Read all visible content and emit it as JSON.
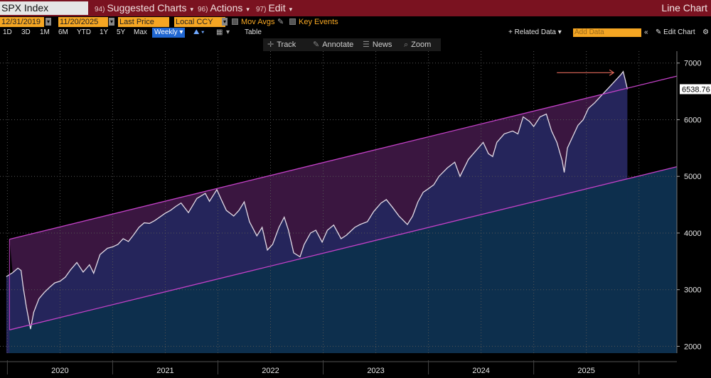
{
  "header": {
    "ticker": "SPX Index",
    "menus": [
      {
        "num": "94)",
        "label": "Suggested Charts"
      },
      {
        "num": "96)",
        "label": "Actions"
      },
      {
        "num": "97)",
        "label": "Edit"
      }
    ],
    "chart_type": "Line Chart"
  },
  "controls": {
    "start_date": "12/31/2019",
    "end_date": "11/20/2025",
    "price_field": "Last Price",
    "currency": "Local CCY",
    "mov_avgs": "Mov Avgs",
    "key_events": "Key Events",
    "ranges": [
      "1D",
      "3D",
      "1M",
      "6M",
      "YTD",
      "1Y",
      "5Y",
      "Max"
    ],
    "frequency": "Weekly",
    "table_label": "Table",
    "related_data": "+ Related Data",
    "add_data_placeholder": "Add Data",
    "edit_chart": "Edit Chart"
  },
  "toolbar": {
    "track": "Track",
    "annotate": "Annotate",
    "news": "News",
    "zoom": "Zoom"
  },
  "chart_data": {
    "type": "line",
    "series": [
      {
        "values": [
          [
            2019.99,
            3231
          ],
          [
            2020.05,
            3300
          ],
          [
            2020.1,
            3380
          ],
          [
            2020.13,
            3340
          ],
          [
            2020.15,
            3050
          ],
          [
            2020.18,
            2700
          ],
          [
            2020.22,
            2304
          ],
          [
            2020.25,
            2600
          ],
          [
            2020.3,
            2840
          ],
          [
            2020.35,
            2950
          ],
          [
            2020.4,
            3040
          ],
          [
            2020.45,
            3120
          ],
          [
            2020.5,
            3150
          ],
          [
            2020.55,
            3220
          ],
          [
            2020.6,
            3350
          ],
          [
            2020.66,
            3480
          ],
          [
            2020.72,
            3310
          ],
          [
            2020.78,
            3440
          ],
          [
            2020.82,
            3290
          ],
          [
            2020.88,
            3620
          ],
          [
            2020.95,
            3730
          ],
          [
            2021.0,
            3756
          ],
          [
            2021.05,
            3800
          ],
          [
            2021.1,
            3900
          ],
          [
            2021.15,
            3850
          ],
          [
            2021.2,
            3970
          ],
          [
            2021.25,
            4100
          ],
          [
            2021.3,
            4180
          ],
          [
            2021.35,
            4170
          ],
          [
            2021.4,
            4220
          ],
          [
            2021.5,
            4350
          ],
          [
            2021.55,
            4400
          ],
          [
            2021.6,
            4470
          ],
          [
            2021.65,
            4530
          ],
          [
            2021.72,
            4360
          ],
          [
            2021.8,
            4610
          ],
          [
            2021.88,
            4700
          ],
          [
            2021.92,
            4560
          ],
          [
            2021.99,
            4766
          ],
          [
            2022.03,
            4600
          ],
          [
            2022.08,
            4400
          ],
          [
            2022.15,
            4300
          ],
          [
            2022.2,
            4400
          ],
          [
            2022.25,
            4550
          ],
          [
            2022.3,
            4200
          ],
          [
            2022.37,
            3950
          ],
          [
            2022.42,
            4100
          ],
          [
            2022.47,
            3700
          ],
          [
            2022.52,
            3800
          ],
          [
            2022.58,
            4100
          ],
          [
            2022.63,
            4280
          ],
          [
            2022.67,
            4050
          ],
          [
            2022.72,
            3650
          ],
          [
            2022.78,
            3580
          ],
          [
            2022.82,
            3800
          ],
          [
            2022.88,
            4000
          ],
          [
            2022.93,
            4050
          ],
          [
            2022.99,
            3840
          ],
          [
            2023.04,
            4050
          ],
          [
            2023.1,
            4140
          ],
          [
            2023.17,
            3900
          ],
          [
            2023.22,
            3960
          ],
          [
            2023.3,
            4100
          ],
          [
            2023.35,
            4150
          ],
          [
            2023.42,
            4200
          ],
          [
            2023.48,
            4380
          ],
          [
            2023.55,
            4530
          ],
          [
            2023.6,
            4590
          ],
          [
            2023.66,
            4450
          ],
          [
            2023.72,
            4300
          ],
          [
            2023.8,
            4150
          ],
          [
            2023.85,
            4300
          ],
          [
            2023.9,
            4550
          ],
          [
            2023.95,
            4720
          ],
          [
            2023.99,
            4770
          ],
          [
            2024.05,
            4850
          ],
          [
            2024.1,
            5000
          ],
          [
            2024.18,
            5150
          ],
          [
            2024.25,
            5250
          ],
          [
            2024.3,
            5000
          ],
          [
            2024.38,
            5300
          ],
          [
            2024.45,
            5450
          ],
          [
            2024.52,
            5600
          ],
          [
            2024.57,
            5400
          ],
          [
            2024.61,
            5350
          ],
          [
            2024.65,
            5600
          ],
          [
            2024.72,
            5750
          ],
          [
            2024.8,
            5800
          ],
          [
            2024.85,
            5750
          ],
          [
            2024.9,
            6050
          ],
          [
            2024.96,
            5970
          ],
          [
            2025.0,
            5880
          ],
          [
            2025.06,
            6050
          ],
          [
            2025.12,
            6100
          ],
          [
            2025.17,
            5800
          ],
          [
            2025.22,
            5600
          ],
          [
            2025.27,
            5280
          ],
          [
            2025.29,
            5070
          ],
          [
            2025.32,
            5500
          ],
          [
            2025.37,
            5700
          ],
          [
            2025.42,
            5900
          ],
          [
            2025.47,
            6000
          ],
          [
            2025.52,
            6200
          ],
          [
            2025.58,
            6300
          ],
          [
            2025.63,
            6400
          ],
          [
            2025.68,
            6500
          ],
          [
            2025.73,
            6600
          ],
          [
            2025.78,
            6700
          ],
          [
            2025.83,
            6800
          ],
          [
            2025.85,
            6850
          ],
          [
            2025.87,
            6700
          ],
          [
            2025.89,
            6539
          ]
        ]
      }
    ],
    "xlim": [
      2019.93,
      2026.36
    ],
    "ylim": [
      1880,
      7210
    ],
    "x_ticks": [
      {
        "label": "2020",
        "x": 2020.0
      },
      {
        "label": "2021",
        "x": 2021.0
      },
      {
        "label": "2022",
        "x": 2022.0
      },
      {
        "label": "2023",
        "x": 2023.0
      },
      {
        "label": "2024",
        "x": 2024.0
      },
      {
        "label": "2025",
        "x": 2025.0
      }
    ],
    "y_ticks": [
      2000,
      3000,
      4000,
      5000,
      6000,
      7000
    ],
    "last_value_label": "6538.76",
    "channel": {
      "upper": [
        [
          2020.02,
          3890
        ],
        [
          2026.36,
          6770
        ]
      ],
      "lower": [
        [
          2020.02,
          2290
        ],
        [
          2026.36,
          5170
        ]
      ]
    },
    "arrow": {
      "from": [
        2025.22,
        6830
      ],
      "to": [
        2025.76,
        6830
      ]
    },
    "colors": {
      "line": "#e2dbe6",
      "fill_upper": "#3a1640",
      "fill_lower": "#2c2c6b",
      "channel": "#c341c7",
      "arrow": "#e0685a",
      "area_below_channel": "#0d2f4d",
      "grid": "#555555",
      "last_value_bg": "#ffffff"
    },
    "grid": true
  }
}
